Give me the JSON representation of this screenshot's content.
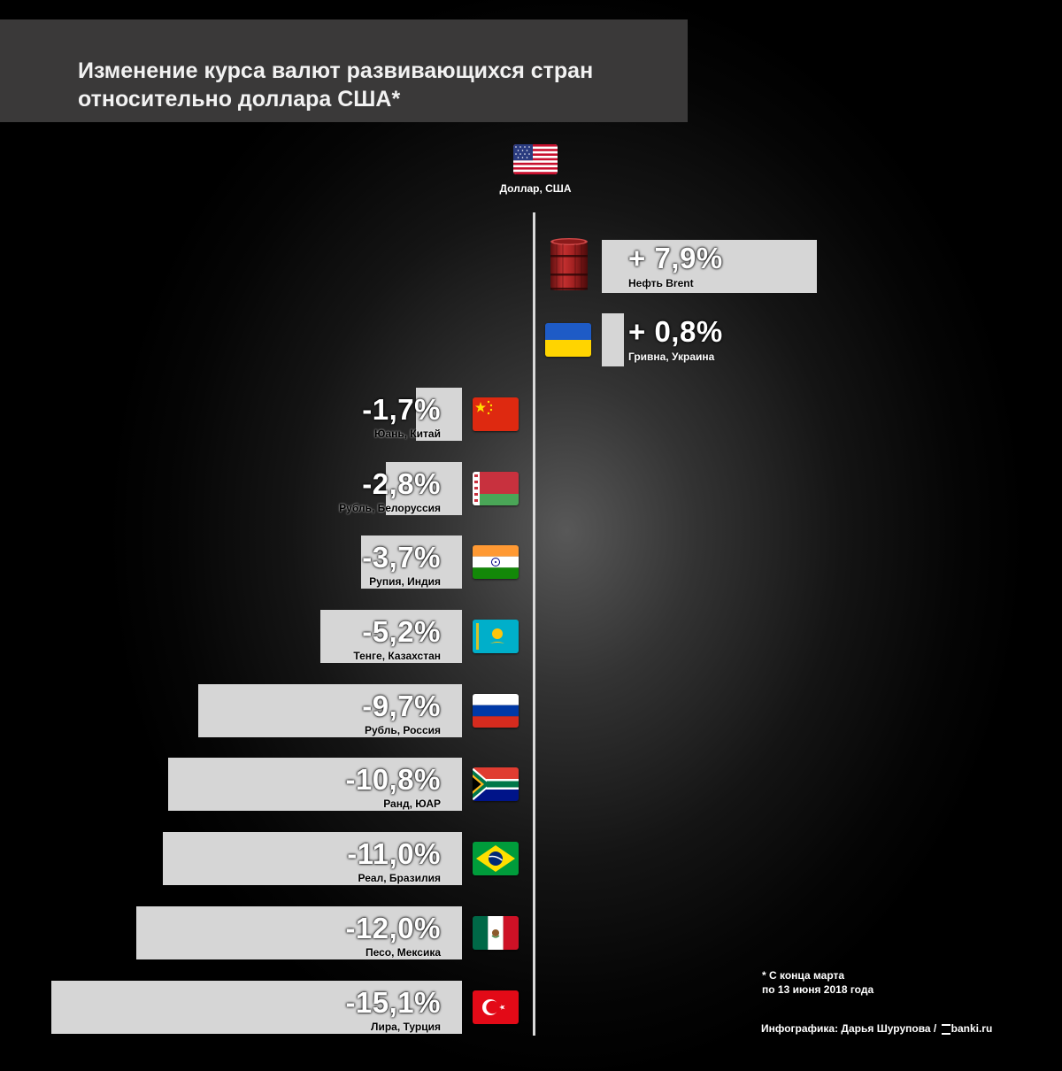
{
  "title": "Изменение курса валют  развивающихся стран относительно доллара США*",
  "center": {
    "label": "Доллар, США",
    "flag_icon": "usa-flag-icon"
  },
  "note": [
    "* С конца марта",
    "по 13 июня 2018 года"
  ],
  "credit": {
    "text": "Инфографика: Дарья Шурупова /",
    "logo": "banki.ru"
  },
  "colors": {
    "bar": "#d6d6d6",
    "title_bg": "#3a3939"
  },
  "chart_data": {
    "type": "bar",
    "orientation": "horizontal",
    "title": "Изменение курса валют  развивающихся стран относительно доллара США*",
    "unit": "%",
    "categories": [
      "Нефть Brent",
      "Гривна, Украина",
      "Юань, Китай",
      "Рубль, Белоруссия",
      "Рупия, Индия",
      "Тенге, Казахстан",
      "Рубль, Россия",
      "Ранд, ЮАР",
      "Реал, Бразилия",
      "Песо,  Мексика",
      "Лира, Турция"
    ],
    "values": [
      7.9,
      0.8,
      -1.7,
      -2.8,
      -3.7,
      -5.2,
      -9.7,
      -10.8,
      -11.0,
      -12.0,
      -15.1
    ],
    "value_labels": [
      "+ 7,9%",
      "+ 0,8%",
      "-1,7%",
      "-2,8%",
      "-3,7%",
      "-5,2%",
      "-9,7%",
      "-10,8%",
      "-11,0%",
      "-12,0%",
      "-15,1%"
    ],
    "icons": [
      "oil-barrel-icon",
      "ukraine-flag-icon",
      "china-flag-icon",
      "belarus-flag-icon",
      "india-flag-icon",
      "kazakhstan-flag-icon",
      "russia-flag-icon",
      "south-africa-flag-icon",
      "brazil-flag-icon",
      "mexico-flag-icon",
      "turkey-flag-icon"
    ],
    "xlim": [
      -15.1,
      7.9
    ],
    "baseline": 0,
    "grid": false,
    "legend": "none"
  }
}
